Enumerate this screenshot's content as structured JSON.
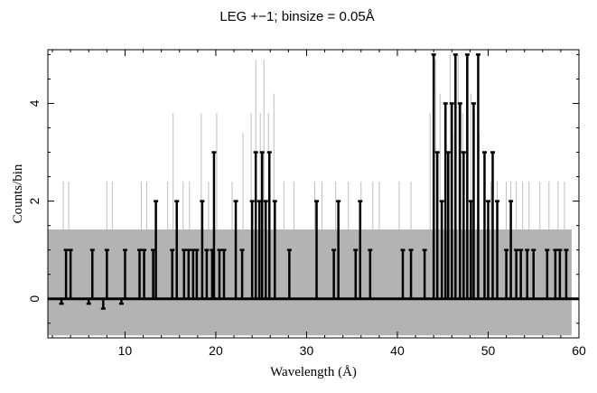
{
  "chart_data": {
    "type": "line",
    "title": "LEG +−1; binsize = 0.05Å",
    "xlabel": "Wavelength (Å)",
    "ylabel": "Counts/bin",
    "xlim": [
      1.5,
      60
    ],
    "ylim": [
      -0.8,
      5.1
    ],
    "x_ticks": [
      10,
      20,
      30,
      40,
      50,
      60
    ],
    "y_ticks": [
      0,
      2,
      4
    ],
    "grid": false,
    "legend": "none",
    "colors": {
      "data": "#000000",
      "background_band": "#b3b3b3",
      "model_spikes": "#bdbdbd"
    },
    "series": [
      {
        "style": "thick black step histogram (observed counts per bin)",
        "x": [
          3.0,
          3.5,
          4.0,
          6.0,
          6.4,
          7.6,
          8.0,
          9.6,
          10.0,
          11.6,
          12.1,
          13.1,
          13.4,
          15.2,
          15.7,
          16.5,
          17.0,
          17.5,
          17.9,
          18.5,
          19.0,
          19.6,
          19.8,
          20.4,
          20.9,
          22.2,
          22.9,
          24.0,
          24.4,
          24.8,
          25.1,
          25.5,
          25.9,
          26.5,
          28.1,
          31.1,
          33.0,
          33.5,
          35.4,
          35.9,
          37.0,
          40.6,
          41.5,
          43.0,
          44.0,
          44.4,
          44.9,
          45.3,
          45.6,
          46.0,
          46.4,
          46.9,
          47.3,
          47.7,
          48.1,
          48.4,
          48.9,
          49.6,
          50.0,
          50.5,
          51.0,
          52.0,
          52.5,
          53.1,
          53.6,
          54.3,
          55.0,
          56.5,
          57.4,
          57.9,
          58.6
        ],
        "values": [
          -0.1,
          1,
          1,
          -0.1,
          1,
          -0.2,
          1,
          -0.1,
          1,
          1,
          1,
          1,
          2,
          1,
          2,
          1,
          1,
          1,
          1,
          2,
          1,
          1,
          3,
          1,
          1,
          2,
          1,
          2,
          3,
          2,
          3,
          2,
          3,
          2,
          1,
          2,
          1,
          2,
          1,
          2,
          1,
          1,
          1,
          1,
          5,
          3,
          2,
          4,
          3,
          4,
          5,
          4,
          3,
          5,
          2,
          4,
          5,
          3,
          2,
          3,
          2,
          1,
          2,
          1,
          1,
          1,
          1,
          1,
          1,
          1,
          1
        ]
      },
      {
        "style": "thin light-grey spikes (upper envelope)",
        "x": [
          3.2,
          3.8,
          8.0,
          8.6,
          11.8,
          12.4,
          14.7,
          15.3,
          16.4,
          17.1,
          18.4,
          19.2,
          20.1,
          21.8,
          23.0,
          23.9,
          24.4,
          24.9,
          25.3,
          25.8,
          26.4,
          27.5,
          28.6,
          30.9,
          31.7,
          33.2,
          34.6,
          36.0,
          37.3,
          38.0,
          40.2,
          41.5,
          43.6,
          44.2,
          44.7,
          45.2,
          45.8,
          46.3,
          46.7,
          47.2,
          47.6,
          48.1,
          48.5,
          49.0,
          49.6,
          50.3,
          51.0,
          52.0,
          52.5,
          53.1,
          53.8,
          54.5,
          55.7,
          56.7,
          57.7,
          58.4
        ],
        "values": [
          2.4,
          2.4,
          2.4,
          2.4,
          2.4,
          2.4,
          2.4,
          3.8,
          2.4,
          2.4,
          3.8,
          2.4,
          3.8,
          2.4,
          3.4,
          3.8,
          4.9,
          3.8,
          4.9,
          3.8,
          4.2,
          2.4,
          2.4,
          2.4,
          2.4,
          2.4,
          2.4,
          2.4,
          2.4,
          2.4,
          2.4,
          2.4,
          3.8,
          4.9,
          4.2,
          3.8,
          5.0,
          3.4,
          5.0,
          3.8,
          5.0,
          4.2,
          3.8,
          3.4,
          2.4,
          2.4,
          2.4,
          2.4,
          2.4,
          2.4,
          2.4,
          2.4,
          2.4,
          2.4,
          2.4,
          2.4
        ]
      }
    ],
    "background_band": {
      "x_range": [
        1.5,
        59.2
      ],
      "y_low": -0.75,
      "y_high": 1.42
    }
  }
}
